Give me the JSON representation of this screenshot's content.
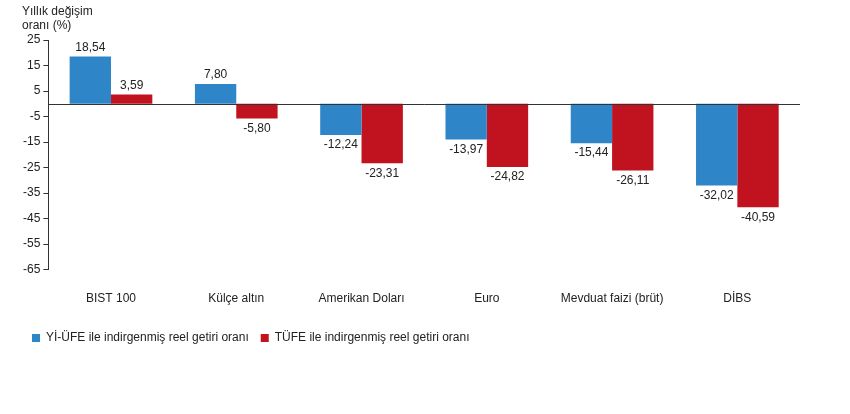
{
  "chart_data": {
    "type": "bar",
    "ylabel": "Yıllık değişim oranı (%)",
    "categories": [
      "BIST 100",
      "Külçe altın",
      "Amerikan Doları",
      "Euro",
      "Mevduat faizi (brüt)",
      "DİBS"
    ],
    "series": [
      {
        "name": "Yİ-ÜFE ile indirgenmiş reel getiri oranı",
        "color": "#2e86c8",
        "values": [
          18.54,
          7.8,
          -12.24,
          -13.97,
          -15.44,
          -32.02
        ],
        "value_labels": [
          "18,54",
          "7,80",
          "-12,24",
          "-13,97",
          "-15,44",
          "-32,02"
        ]
      },
      {
        "name": "TÜFE ile indirgenmiş reel getiri oranı",
        "color": "#c0131f",
        "values": [
          3.59,
          -5.8,
          -23.31,
          -24.82,
          -26.11,
          -40.59
        ],
        "value_labels": [
          "3,59",
          "-5,80",
          "-23,31",
          "-24,82",
          "-26,11",
          "-40,59"
        ]
      }
    ],
    "ylim": [
      -65,
      25
    ],
    "yticks": [
      -65,
      -55,
      -45,
      -35,
      -25,
      -15,
      -5,
      5,
      15,
      25
    ],
    "grid": false,
    "legend": "bottom-left",
    "data_labels": true
  }
}
